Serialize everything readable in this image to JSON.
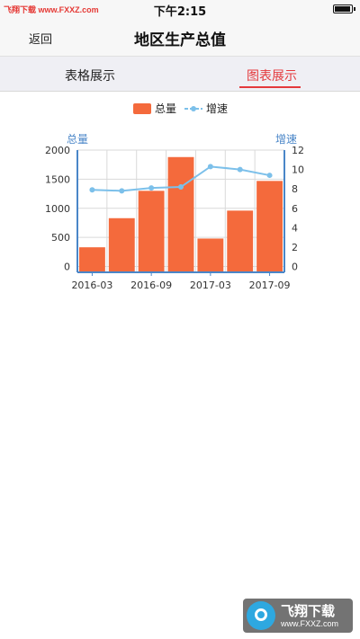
{
  "status_bar": {
    "watermark": "飞翔下载 www.FXXZ.com",
    "time": "下午2:15"
  },
  "nav": {
    "back_label": "返回",
    "title": "地区生产总值"
  },
  "tabs": [
    {
      "label": "表格展示",
      "active": false
    },
    {
      "label": "图表展示",
      "active": true
    }
  ],
  "colors": {
    "accent": "#e4393c",
    "bar": "#f46a3c",
    "line": "#7cc0ea",
    "axis": "#4a86c8"
  },
  "chart_data": {
    "type": "bar",
    "legend": [
      {
        "name": "总量",
        "kind": "bar"
      },
      {
        "name": "增速",
        "kind": "line"
      }
    ],
    "legend_position": "top-center",
    "grid": true,
    "x_tick_labels": [
      "2016-03",
      "2016-09",
      "2017-03",
      "2017-09"
    ],
    "categories": [
      "2016-03",
      "2016-06",
      "2016-09",
      "2016-12",
      "2017-03",
      "2017-06",
      "2017-09"
    ],
    "series": [
      {
        "name": "总量",
        "type": "bar",
        "axis": "left",
        "values": [
          330,
          830,
          1300,
          1880,
          480,
          960,
          1470
        ]
      },
      {
        "name": "增速",
        "type": "line",
        "axis": "right",
        "values": [
          7.9,
          7.8,
          8.1,
          8.2,
          10.3,
          10.0,
          9.4
        ]
      }
    ],
    "y_left": {
      "label": "总量",
      "ticks": [
        0,
        500,
        1000,
        1500,
        2000
      ],
      "range": [
        -100,
        2000
      ]
    },
    "y_right": {
      "label": "增速",
      "ticks": [
        0,
        2,
        4,
        6,
        8,
        10,
        12
      ],
      "range": [
        -0.6,
        12
      ]
    }
  },
  "bottom_watermark": {
    "title": "飞翔下载",
    "url": "www.FXXZ.com"
  }
}
